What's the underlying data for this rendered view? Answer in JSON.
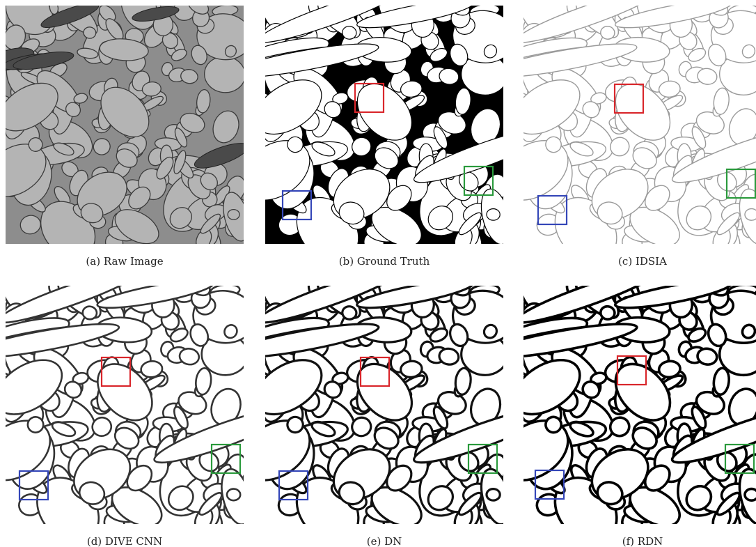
{
  "figure": {
    "panels": [
      {
        "caption": "(a) Raw Image"
      },
      {
        "caption": "(b) Ground Truth"
      },
      {
        "caption": "(c) IDSIA"
      },
      {
        "caption": "(d) DIVE CNN"
      },
      {
        "caption": "(e) DN"
      },
      {
        "caption": "(f) RDN"
      }
    ]
  }
}
